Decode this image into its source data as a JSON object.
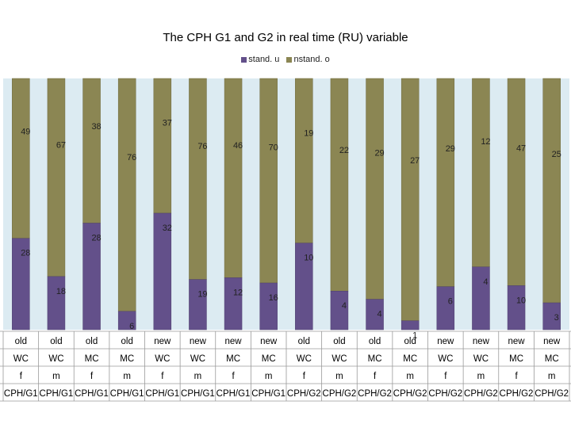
{
  "chart_data": {
    "type": "bar",
    "stacked": true,
    "title": "The CPH G1 and G2 in real time (RU) variable",
    "legend": [
      {
        "name": "stand. u",
        "color": "#63508a"
      },
      {
        "name": "nstand. o",
        "color": "#8b8653"
      }
    ],
    "categories": [
      [
        "old",
        "WC",
        "f",
        "CPH/G1"
      ],
      [
        "old",
        "WC",
        "m",
        "CPH/G1"
      ],
      [
        "old",
        "MC",
        "f",
        "CPH/G1"
      ],
      [
        "old",
        "MC",
        "m",
        "CPH/G1"
      ],
      [
        "new",
        "WC",
        "f",
        "CPH/G1"
      ],
      [
        "new",
        "WC",
        "m",
        "CPH/G1"
      ],
      [
        "new",
        "MC",
        "f",
        "CPH/G1"
      ],
      [
        "new",
        "MC",
        "m",
        "CPH/G1"
      ],
      [
        "old",
        "WC",
        "f",
        "CPH/G2"
      ],
      [
        "old",
        "WC",
        "m",
        "CPH/G2"
      ],
      [
        "old",
        "MC",
        "f",
        "CPH/G2"
      ],
      [
        "old",
        "MC",
        "m",
        "CPH/G2"
      ],
      [
        "new",
        "WC",
        "f",
        "CPH/G2"
      ],
      [
        "new",
        "WC",
        "m",
        "CPH/G2"
      ],
      [
        "new",
        "MC",
        "f",
        "CPH/G2"
      ],
      [
        "new",
        "MC",
        "m",
        "CPH/G2"
      ]
    ],
    "series": [
      {
        "name": "stand. u",
        "values": [
          28,
          18,
          28,
          6,
          32,
          19,
          12,
          16,
          10,
          4,
          4,
          1,
          6,
          4,
          10,
          3
        ]
      },
      {
        "name": "nstand. o",
        "values": [
          49,
          67,
          38,
          76,
          37,
          76,
          46,
          70,
          19,
          22,
          29,
          27,
          29,
          12,
          47,
          25
        ]
      }
    ],
    "plot_background": "#dcebf2",
    "ylim": [
      0,
      100
    ]
  }
}
